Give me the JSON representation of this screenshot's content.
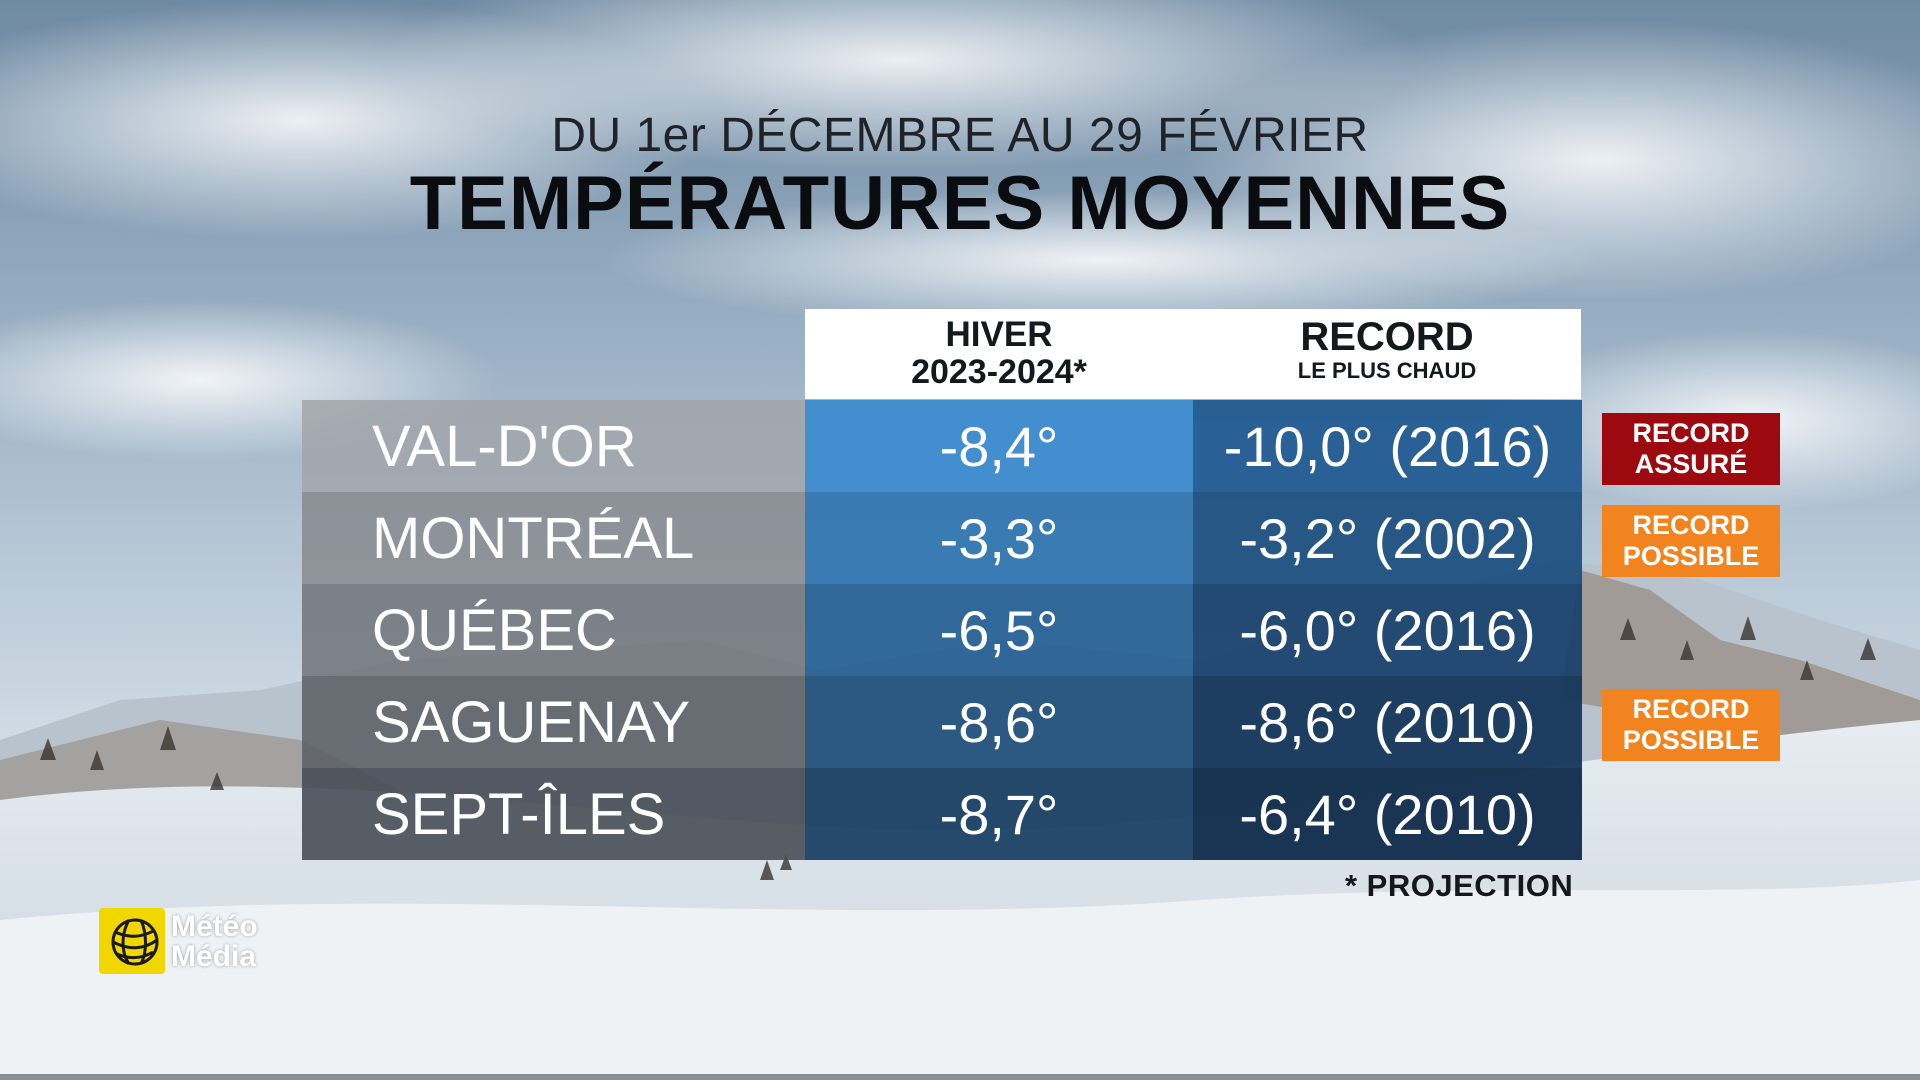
{
  "header": {
    "subtitle": "DU 1er DÉCEMBRE AU 29 FÉVRIER",
    "title": "TEMPÉRATURES MOYENNES"
  },
  "columns": {
    "hiver": {
      "line1": "HIVER",
      "line2": "2023-2024*"
    },
    "record": {
      "line1": "RECORD",
      "line2": "LE PLUS CHAUD"
    }
  },
  "rows": [
    {
      "city": "VAL-D'OR",
      "hiver": "-8,4°",
      "record": "-10,0° (2016)",
      "badge": {
        "line1": "RECORD",
        "line2": "ASSURÉ",
        "color": "#9c0a10"
      }
    },
    {
      "city": "MONTRÉAL",
      "hiver": "-3,3°",
      "record": "-3,2° (2002)",
      "badge": {
        "line1": "RECORD",
        "line2": "POSSIBLE",
        "color": "#f2841f"
      }
    },
    {
      "city": "QUÉBEC",
      "hiver": "-6,5°",
      "record": "-6,0° (2016)",
      "badge": null
    },
    {
      "city": "SAGUENAY",
      "hiver": "-8,6°",
      "record": "-8,6° (2010)",
      "badge": {
        "line1": "RECORD",
        "line2": "POSSIBLE",
        "color": "#f2841f"
      }
    },
    {
      "city": "SEPT-ÎLES",
      "hiver": "-8,7°",
      "record": "-6,4° (2010)",
      "badge": null
    }
  ],
  "footnote": "* PROJECTION",
  "logo": {
    "line1": "Météo",
    "line2": "Média",
    "color": "#f2d600"
  }
}
